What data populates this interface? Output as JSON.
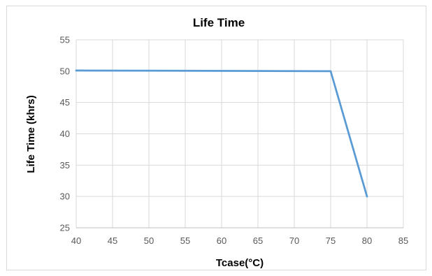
{
  "chart_data": {
    "type": "line",
    "title": "Life Time",
    "xlabel": "Tcase(°C)",
    "ylabel": "Life Time (khrs)",
    "xlim": [
      40,
      85
    ],
    "ylim": [
      25,
      55
    ],
    "x_ticks": [
      40,
      45,
      50,
      55,
      60,
      65,
      70,
      75,
      80,
      85
    ],
    "y_ticks": [
      25,
      30,
      35,
      40,
      45,
      50,
      55
    ],
    "grid": true,
    "legend": "none",
    "series": [
      {
        "color": "#5b9bd5",
        "x": [
          40,
          75,
          80
        ],
        "y": [
          50.1,
          50,
          30
        ]
      }
    ]
  }
}
